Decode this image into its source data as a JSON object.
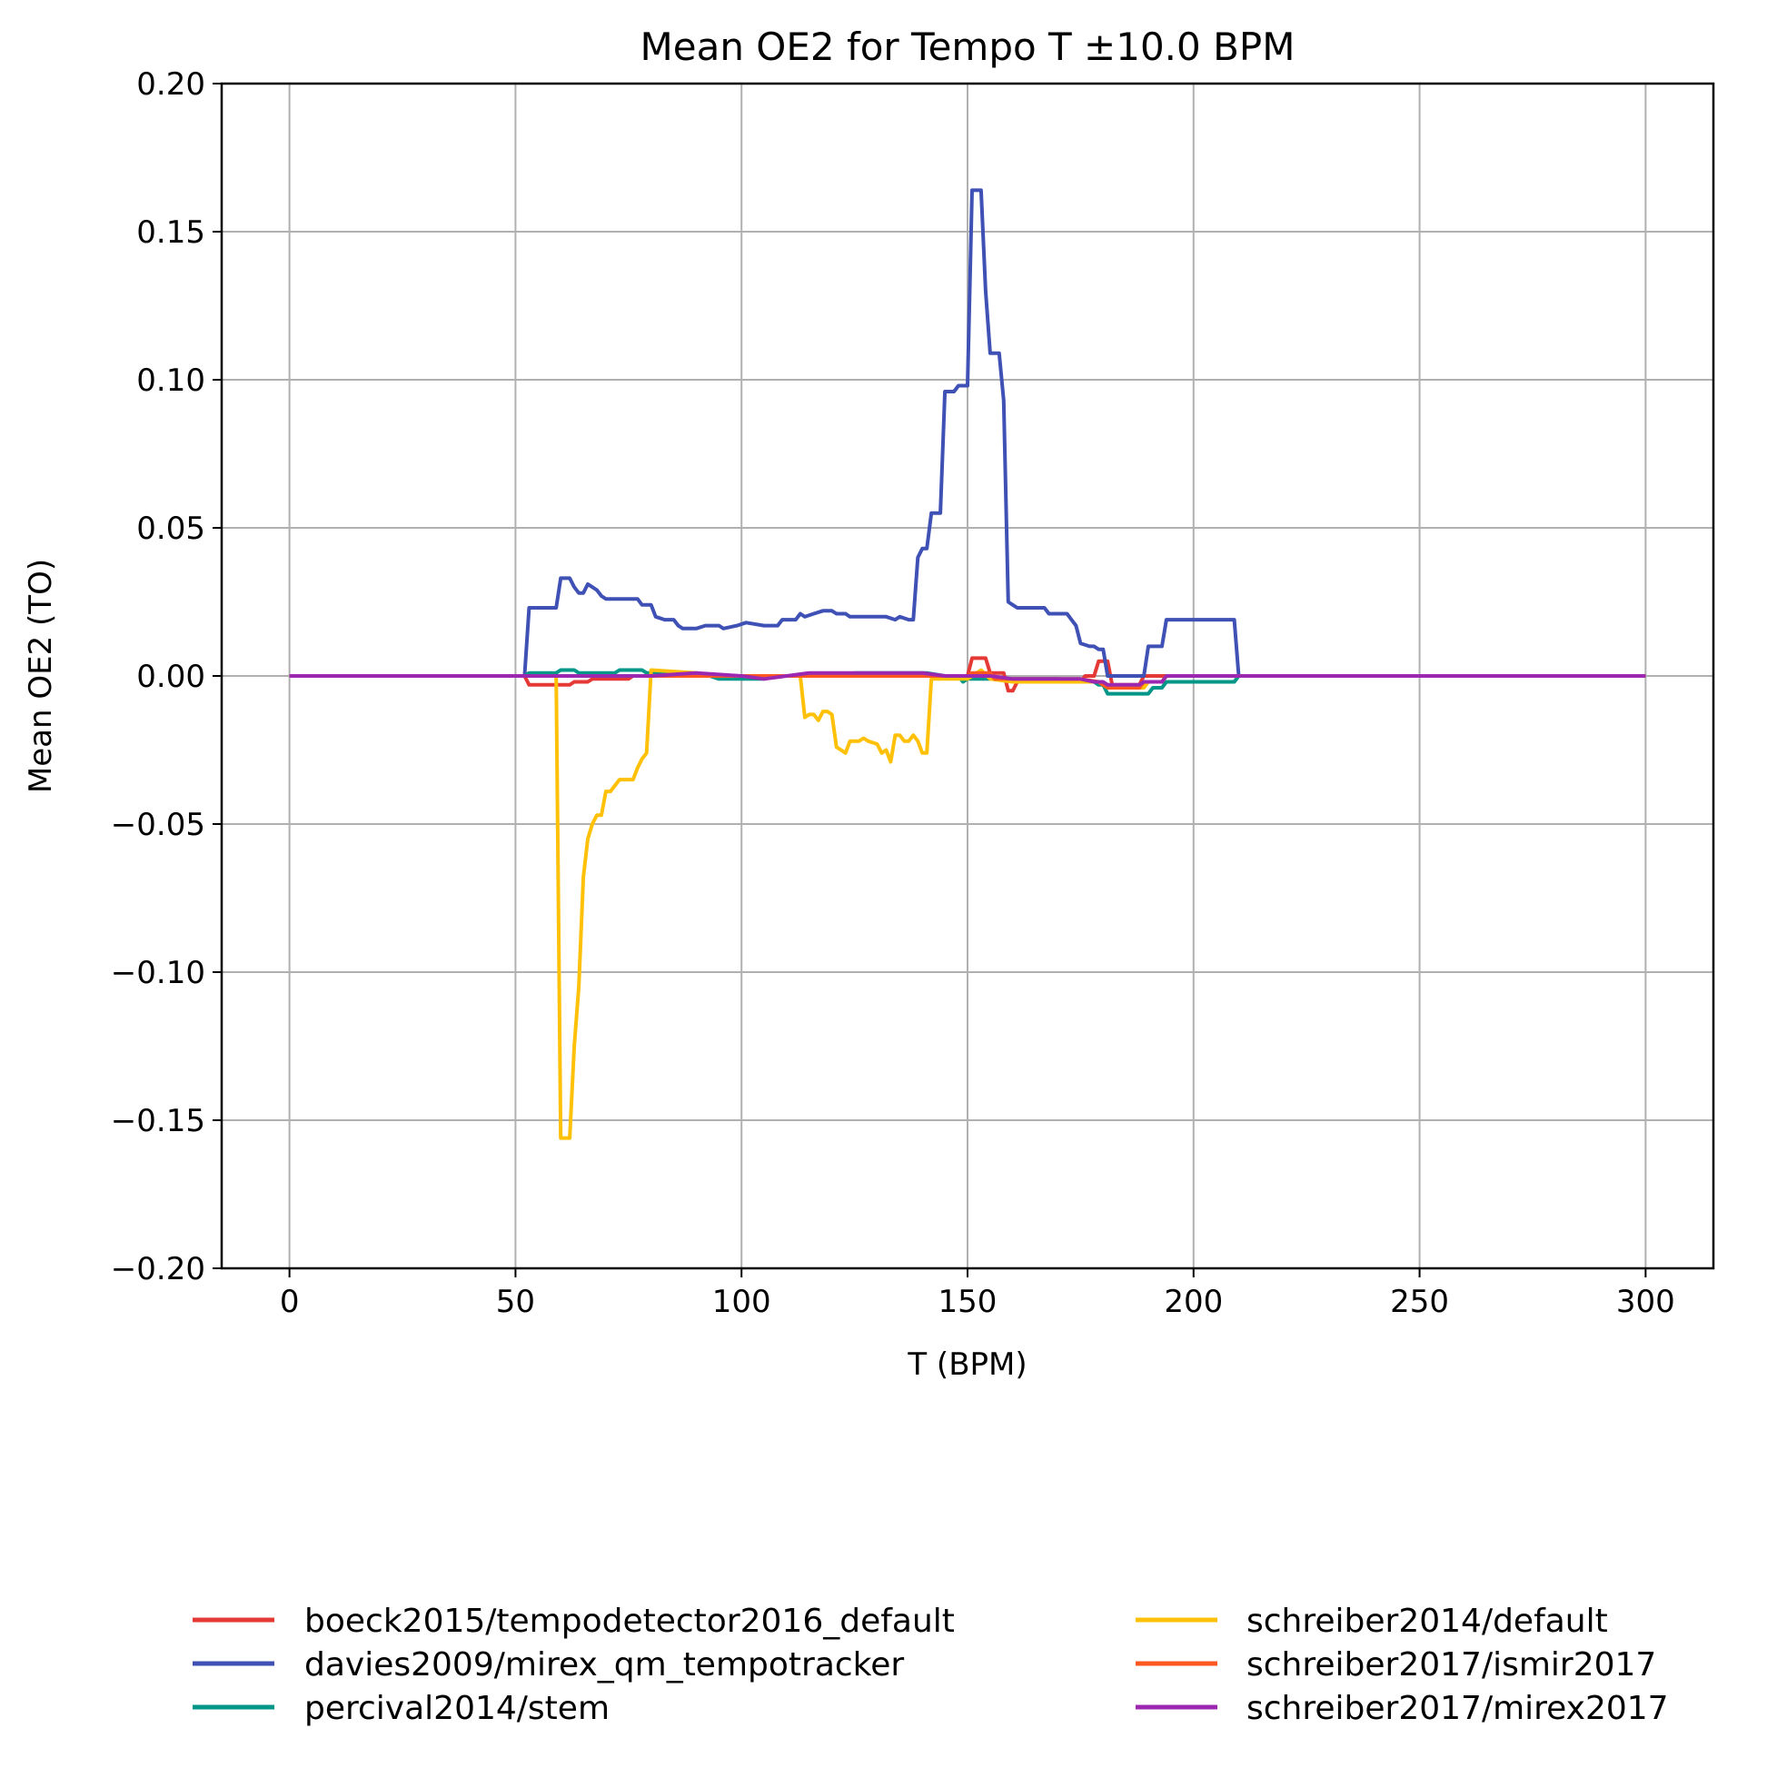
{
  "chart_data": {
    "type": "line",
    "title": "Mean OE2 for Tempo T ±10.0 BPM",
    "xlabel": "T (BPM)",
    "ylabel": "Mean OE2 (TO)",
    "xlim": [
      -15,
      315
    ],
    "ylim": [
      -0.2,
      0.2
    ],
    "xticks": [
      0,
      50,
      100,
      150,
      200,
      250,
      300
    ],
    "xtick_labels": [
      "0",
      "50",
      "100",
      "150",
      "200",
      "250",
      "300"
    ],
    "yticks": [
      -0.2,
      -0.15,
      -0.1,
      -0.05,
      0.0,
      0.05,
      0.1,
      0.15,
      0.2
    ],
    "ytick_labels": [
      "−0.20",
      "−0.15",
      "−0.10",
      "−0.05",
      "0.00",
      "0.05",
      "0.10",
      "0.15",
      "0.20"
    ],
    "grid": true,
    "legend_position": "bottom, below plot, two columns",
    "series": [
      {
        "name": "boeck2015/tempodetector2016_default",
        "color": "#e53935",
        "points": [
          [
            0,
            0
          ],
          [
            52,
            0
          ],
          [
            53,
            -0.003
          ],
          [
            62,
            -0.003
          ],
          [
            63,
            -0.002
          ],
          [
            66,
            -0.002
          ],
          [
            67,
            -0.001
          ],
          [
            75,
            -0.001
          ],
          [
            76,
            0
          ],
          [
            150,
            0
          ],
          [
            151,
            0.006
          ],
          [
            154,
            0.006
          ],
          [
            155,
            0.001
          ],
          [
            158,
            0.001
          ],
          [
            159,
            -0.005
          ],
          [
            160,
            -0.005
          ],
          [
            161,
            -0.002
          ],
          [
            175,
            -0.002
          ],
          [
            176,
            0
          ],
          [
            178,
            0
          ],
          [
            179,
            0.005
          ],
          [
            181,
            0.005
          ],
          [
            182,
            -0.003
          ],
          [
            188,
            -0.003
          ],
          [
            189,
            0
          ],
          [
            300,
            0
          ]
        ]
      },
      {
        "name": "davies2009/mirex_qm_tempotracker",
        "color": "#3f51b5",
        "points": [
          [
            0,
            0
          ],
          [
            52,
            0
          ],
          [
            53,
            0.023
          ],
          [
            59,
            0.023
          ],
          [
            60,
            0.033
          ],
          [
            62,
            0.033
          ],
          [
            63,
            0.03
          ],
          [
            64,
            0.028
          ],
          [
            65,
            0.028
          ],
          [
            66,
            0.031
          ],
          [
            67,
            0.03
          ],
          [
            68,
            0.029
          ],
          [
            69,
            0.027
          ],
          [
            70,
            0.026
          ],
          [
            72,
            0.026
          ],
          [
            73,
            0.026
          ],
          [
            77,
            0.026
          ],
          [
            78,
            0.024
          ],
          [
            80,
            0.024
          ],
          [
            81,
            0.02
          ],
          [
            83,
            0.019
          ],
          [
            85,
            0.019
          ],
          [
            86,
            0.017
          ],
          [
            87,
            0.016
          ],
          [
            90,
            0.016
          ],
          [
            92,
            0.017
          ],
          [
            95,
            0.017
          ],
          [
            96,
            0.016
          ],
          [
            99,
            0.017
          ],
          [
            101,
            0.018
          ],
          [
            105,
            0.017
          ],
          [
            108,
            0.017
          ],
          [
            109,
            0.019
          ],
          [
            112,
            0.019
          ],
          [
            113,
            0.021
          ],
          [
            114,
            0.02
          ],
          [
            116,
            0.021
          ],
          [
            118,
            0.022
          ],
          [
            120,
            0.022
          ],
          [
            121,
            0.021
          ],
          [
            123,
            0.021
          ],
          [
            124,
            0.02
          ],
          [
            130,
            0.02
          ],
          [
            132,
            0.02
          ],
          [
            134,
            0.019
          ],
          [
            135,
            0.02
          ],
          [
            137,
            0.019
          ],
          [
            138,
            0.019
          ],
          [
            139,
            0.04
          ],
          [
            140,
            0.043
          ],
          [
            141,
            0.043
          ],
          [
            142,
            0.055
          ],
          [
            144,
            0.055
          ],
          [
            145,
            0.096
          ],
          [
            147,
            0.096
          ],
          [
            148,
            0.098
          ],
          [
            150,
            0.098
          ],
          [
            151,
            0.164
          ],
          [
            153,
            0.164
          ],
          [
            154,
            0.13
          ],
          [
            155,
            0.109
          ],
          [
            157,
            0.109
          ],
          [
            158,
            0.093
          ],
          [
            159,
            0.025
          ],
          [
            160,
            0.024
          ],
          [
            161,
            0.023
          ],
          [
            167,
            0.023
          ],
          [
            168,
            0.021
          ],
          [
            172,
            0.021
          ],
          [
            173,
            0.019
          ],
          [
            174,
            0.017
          ],
          [
            175,
            0.011
          ],
          [
            177,
            0.01
          ],
          [
            178,
            0.01
          ],
          [
            179,
            0.009
          ],
          [
            180,
            0.009
          ],
          [
            181,
            0
          ],
          [
            189,
            0
          ],
          [
            190,
            0.01
          ],
          [
            193,
            0.01
          ],
          [
            194,
            0.019
          ],
          [
            209,
            0.019
          ],
          [
            210,
            0
          ],
          [
            300,
            0
          ]
        ]
      },
      {
        "name": "percival2014/stem",
        "color": "#009688",
        "points": [
          [
            0,
            0
          ],
          [
            52,
            0
          ],
          [
            53,
            0.001
          ],
          [
            59,
            0.001
          ],
          [
            60,
            0.002
          ],
          [
            63,
            0.002
          ],
          [
            64,
            0.001
          ],
          [
            72,
            0.001
          ],
          [
            73,
            0.002
          ],
          [
            78,
            0.002
          ],
          [
            79,
            0.001
          ],
          [
            90,
            0.001
          ],
          [
            91,
            0
          ],
          [
            93,
            0
          ],
          [
            95,
            -0.001
          ],
          [
            105,
            -0.001
          ],
          [
            106,
            0
          ],
          [
            120,
            0
          ],
          [
            125,
            0.001
          ],
          [
            140,
            0.001
          ],
          [
            141,
            0.001
          ],
          [
            145,
            0
          ],
          [
            148,
            0
          ],
          [
            149,
            -0.002
          ],
          [
            150,
            -0.001
          ],
          [
            170,
            -0.001
          ],
          [
            175,
            -0.002
          ],
          [
            178,
            -0.002
          ],
          [
            179,
            -0.003
          ],
          [
            180,
            -0.003
          ],
          [
            181,
            -0.006
          ],
          [
            190,
            -0.006
          ],
          [
            191,
            -0.004
          ],
          [
            193,
            -0.004
          ],
          [
            194,
            -0.002
          ],
          [
            209,
            -0.002
          ],
          [
            210,
            0
          ],
          [
            300,
            0
          ]
        ]
      },
      {
        "name": "schreiber2014/default",
        "color": "#ffc107",
        "points": [
          [
            0,
            0
          ],
          [
            59,
            0
          ],
          [
            60,
            -0.156
          ],
          [
            62,
            -0.156
          ],
          [
            63,
            -0.125
          ],
          [
            64,
            -0.105
          ],
          [
            65,
            -0.068
          ],
          [
            66,
            -0.055
          ],
          [
            67,
            -0.05
          ],
          [
            68,
            -0.047
          ],
          [
            69,
            -0.047
          ],
          [
            70,
            -0.039
          ],
          [
            71,
            -0.039
          ],
          [
            72,
            -0.037
          ],
          [
            73,
            -0.035
          ],
          [
            75,
            -0.035
          ],
          [
            76,
            -0.035
          ],
          [
            77,
            -0.031
          ],
          [
            78,
            -0.028
          ],
          [
            79,
            -0.026
          ],
          [
            80,
            0.002
          ],
          [
            90,
            0.001
          ],
          [
            91,
            0
          ],
          [
            100,
            0
          ],
          [
            110,
            0
          ],
          [
            111,
            0
          ],
          [
            113,
            0
          ],
          [
            114,
            -0.014
          ],
          [
            115,
            -0.013
          ],
          [
            116,
            -0.013
          ],
          [
            117,
            -0.015
          ],
          [
            118,
            -0.012
          ],
          [
            119,
            -0.012
          ],
          [
            120,
            -0.013
          ],
          [
            121,
            -0.024
          ],
          [
            122,
            -0.025
          ],
          [
            123,
            -0.026
          ],
          [
            124,
            -0.022
          ],
          [
            126,
            -0.022
          ],
          [
            127,
            -0.021
          ],
          [
            128,
            -0.022
          ],
          [
            130,
            -0.023
          ],
          [
            131,
            -0.026
          ],
          [
            132,
            -0.025
          ],
          [
            133,
            -0.029
          ],
          [
            134,
            -0.02
          ],
          [
            135,
            -0.02
          ],
          [
            136,
            -0.022
          ],
          [
            137,
            -0.022
          ],
          [
            138,
            -0.02
          ],
          [
            139,
            -0.022
          ],
          [
            140,
            -0.026
          ],
          [
            141,
            -0.026
          ],
          [
            142,
            -0.001
          ],
          [
            150,
            -0.001
          ],
          [
            153,
            0.002
          ],
          [
            155,
            -0.001
          ],
          [
            160,
            -0.002
          ],
          [
            170,
            -0.002
          ],
          [
            175,
            -0.002
          ],
          [
            179,
            -0.002
          ],
          [
            181,
            -0.004
          ],
          [
            188,
            -0.004
          ],
          [
            189,
            -0.004
          ],
          [
            190,
            -0.002
          ],
          [
            193,
            -0.002
          ],
          [
            194,
            0
          ],
          [
            300,
            0
          ]
        ]
      },
      {
        "name": "schreiber2017/ismir2017",
        "color": "#ff5722",
        "points": [
          [
            0,
            0
          ],
          [
            150,
            0
          ],
          [
            151,
            0.001
          ],
          [
            155,
            0.001
          ],
          [
            156,
            -0.001
          ],
          [
            175,
            -0.001
          ],
          [
            179,
            -0.002
          ],
          [
            181,
            -0.004
          ],
          [
            188,
            -0.004
          ],
          [
            189,
            -0.002
          ],
          [
            193,
            -0.002
          ],
          [
            194,
            0
          ],
          [
            300,
            0
          ]
        ]
      },
      {
        "name": "schreiber2017/mirex2017",
        "color": "#9c27b0",
        "points": [
          [
            0,
            0
          ],
          [
            80,
            0
          ],
          [
            90,
            0.001
          ],
          [
            100,
            0
          ],
          [
            105,
            -0.001
          ],
          [
            110,
            0
          ],
          [
            115,
            0.001
          ],
          [
            120,
            0.001
          ],
          [
            130,
            0.001
          ],
          [
            140,
            0.001
          ],
          [
            145,
            0
          ],
          [
            150,
            0
          ],
          [
            155,
            0
          ],
          [
            160,
            -0.001
          ],
          [
            175,
            -0.001
          ],
          [
            178,
            -0.002
          ],
          [
            180,
            -0.002
          ],
          [
            181,
            -0.003
          ],
          [
            188,
            -0.003
          ],
          [
            189,
            -0.002
          ],
          [
            193,
            -0.002
          ],
          [
            194,
            0
          ],
          [
            300,
            0
          ]
        ]
      }
    ]
  }
}
